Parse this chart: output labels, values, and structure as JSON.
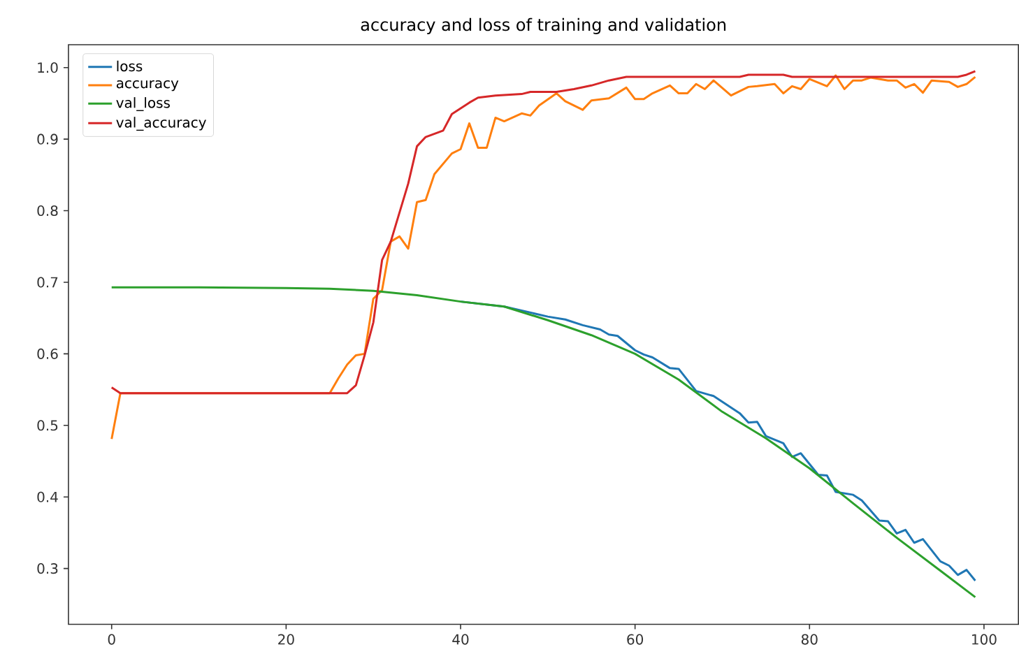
{
  "chart_data": {
    "type": "line",
    "title": "accuracy and loss of training and validation",
    "xlim": [
      -4.95,
      103.95
    ],
    "ylim": [
      0.222,
      1.032
    ],
    "xticks": [
      0,
      20,
      40,
      60,
      80,
      100
    ],
    "yticks": [
      0.3,
      0.4,
      0.5,
      0.6,
      0.7,
      0.8,
      0.9,
      {
        "value": 1.0,
        "label": "1.0"
      }
    ],
    "legend": "top left",
    "grid": false,
    "marker": "none",
    "line_style": "solid",
    "series": [
      {
        "name": "loss",
        "color": "#1f77b4",
        "x": [
          40,
          45,
          50,
          52,
          54,
          56,
          57,
          58,
          60,
          61,
          62,
          64,
          65,
          67,
          69,
          72,
          73,
          74,
          75,
          77,
          78,
          79,
          81,
          82,
          83,
          85,
          86,
          88,
          89,
          90,
          91,
          92,
          93,
          95,
          96,
          97,
          98,
          99
        ],
        "values": [
          0.673,
          0.666,
          0.652,
          0.648,
          0.64,
          0.634,
          0.627,
          0.625,
          0.605,
          0.599,
          0.595,
          0.58,
          0.579,
          0.548,
          0.541,
          0.517,
          0.504,
          0.505,
          0.485,
          0.475,
          0.456,
          0.461,
          0.431,
          0.43,
          0.407,
          0.403,
          0.395,
          0.367,
          0.366,
          0.349,
          0.354,
          0.336,
          0.341,
          0.31,
          0.304,
          0.291,
          0.298,
          0.283
        ]
      },
      {
        "name": "accuracy",
        "color": "#ff7f0e",
        "x": [
          0,
          1,
          25,
          26,
          27,
          28,
          29,
          30,
          31,
          32,
          33,
          34,
          35,
          36,
          37,
          39,
          40,
          41,
          42,
          43,
          44,
          45,
          47,
          48,
          49,
          51,
          52,
          54,
          55,
          57,
          59,
          60,
          61,
          62,
          64,
          65,
          66,
          67,
          68,
          69,
          71,
          73,
          74,
          76,
          77,
          78,
          79,
          80,
          82,
          83,
          84,
          85,
          86,
          87,
          89,
          90,
          91,
          92,
          93,
          94,
          96,
          97,
          98,
          99
        ],
        "values": [
          0.481,
          0.545,
          0.545,
          0.566,
          0.585,
          0.598,
          0.6,
          0.677,
          0.689,
          0.757,
          0.764,
          0.747,
          0.812,
          0.815,
          0.851,
          0.88,
          0.886,
          0.922,
          0.888,
          0.888,
          0.93,
          0.925,
          0.936,
          0.933,
          0.947,
          0.964,
          0.953,
          0.941,
          0.954,
          0.957,
          0.972,
          0.956,
          0.956,
          0.964,
          0.975,
          0.964,
          0.964,
          0.977,
          0.97,
          0.982,
          0.961,
          0.973,
          0.974,
          0.977,
          0.964,
          0.974,
          0.97,
          0.984,
          0.974,
          0.989,
          0.97,
          0.982,
          0.982,
          0.986,
          0.982,
          0.982,
          0.972,
          0.977,
          0.965,
          0.982,
          0.98,
          0.973,
          0.977,
          0.987
        ]
      },
      {
        "name": "val_loss",
        "color": "#2ca02c",
        "x": [
          0,
          10,
          20,
          25,
          30,
          35,
          40,
          45,
          50,
          55,
          60,
          65,
          70,
          75,
          80,
          85,
          90,
          95,
          99
        ],
        "values": [
          0.693,
          0.693,
          0.692,
          0.691,
          0.688,
          0.682,
          0.673,
          0.666,
          0.647,
          0.626,
          0.6,
          0.564,
          0.519,
          0.482,
          0.44,
          0.391,
          0.343,
          0.297,
          0.26
        ]
      },
      {
        "name": "val_accuracy",
        "color": "#d62728",
        "x": [
          0,
          1,
          27,
          28,
          29,
          30,
          31,
          32,
          34,
          35,
          36,
          38,
          39,
          41,
          42,
          44,
          47,
          48,
          51,
          53,
          55,
          57,
          59,
          72,
          73,
          77,
          78,
          97,
          98,
          99
        ],
        "values": [
          0.553,
          0.545,
          0.545,
          0.556,
          0.598,
          0.644,
          0.731,
          0.757,
          0.838,
          0.89,
          0.903,
          0.912,
          0.935,
          0.951,
          0.958,
          0.961,
          0.963,
          0.966,
          0.966,
          0.97,
          0.975,
          0.982,
          0.987,
          0.987,
          0.99,
          0.99,
          0.987,
          0.987,
          0.99,
          0.995
        ]
      }
    ]
  }
}
